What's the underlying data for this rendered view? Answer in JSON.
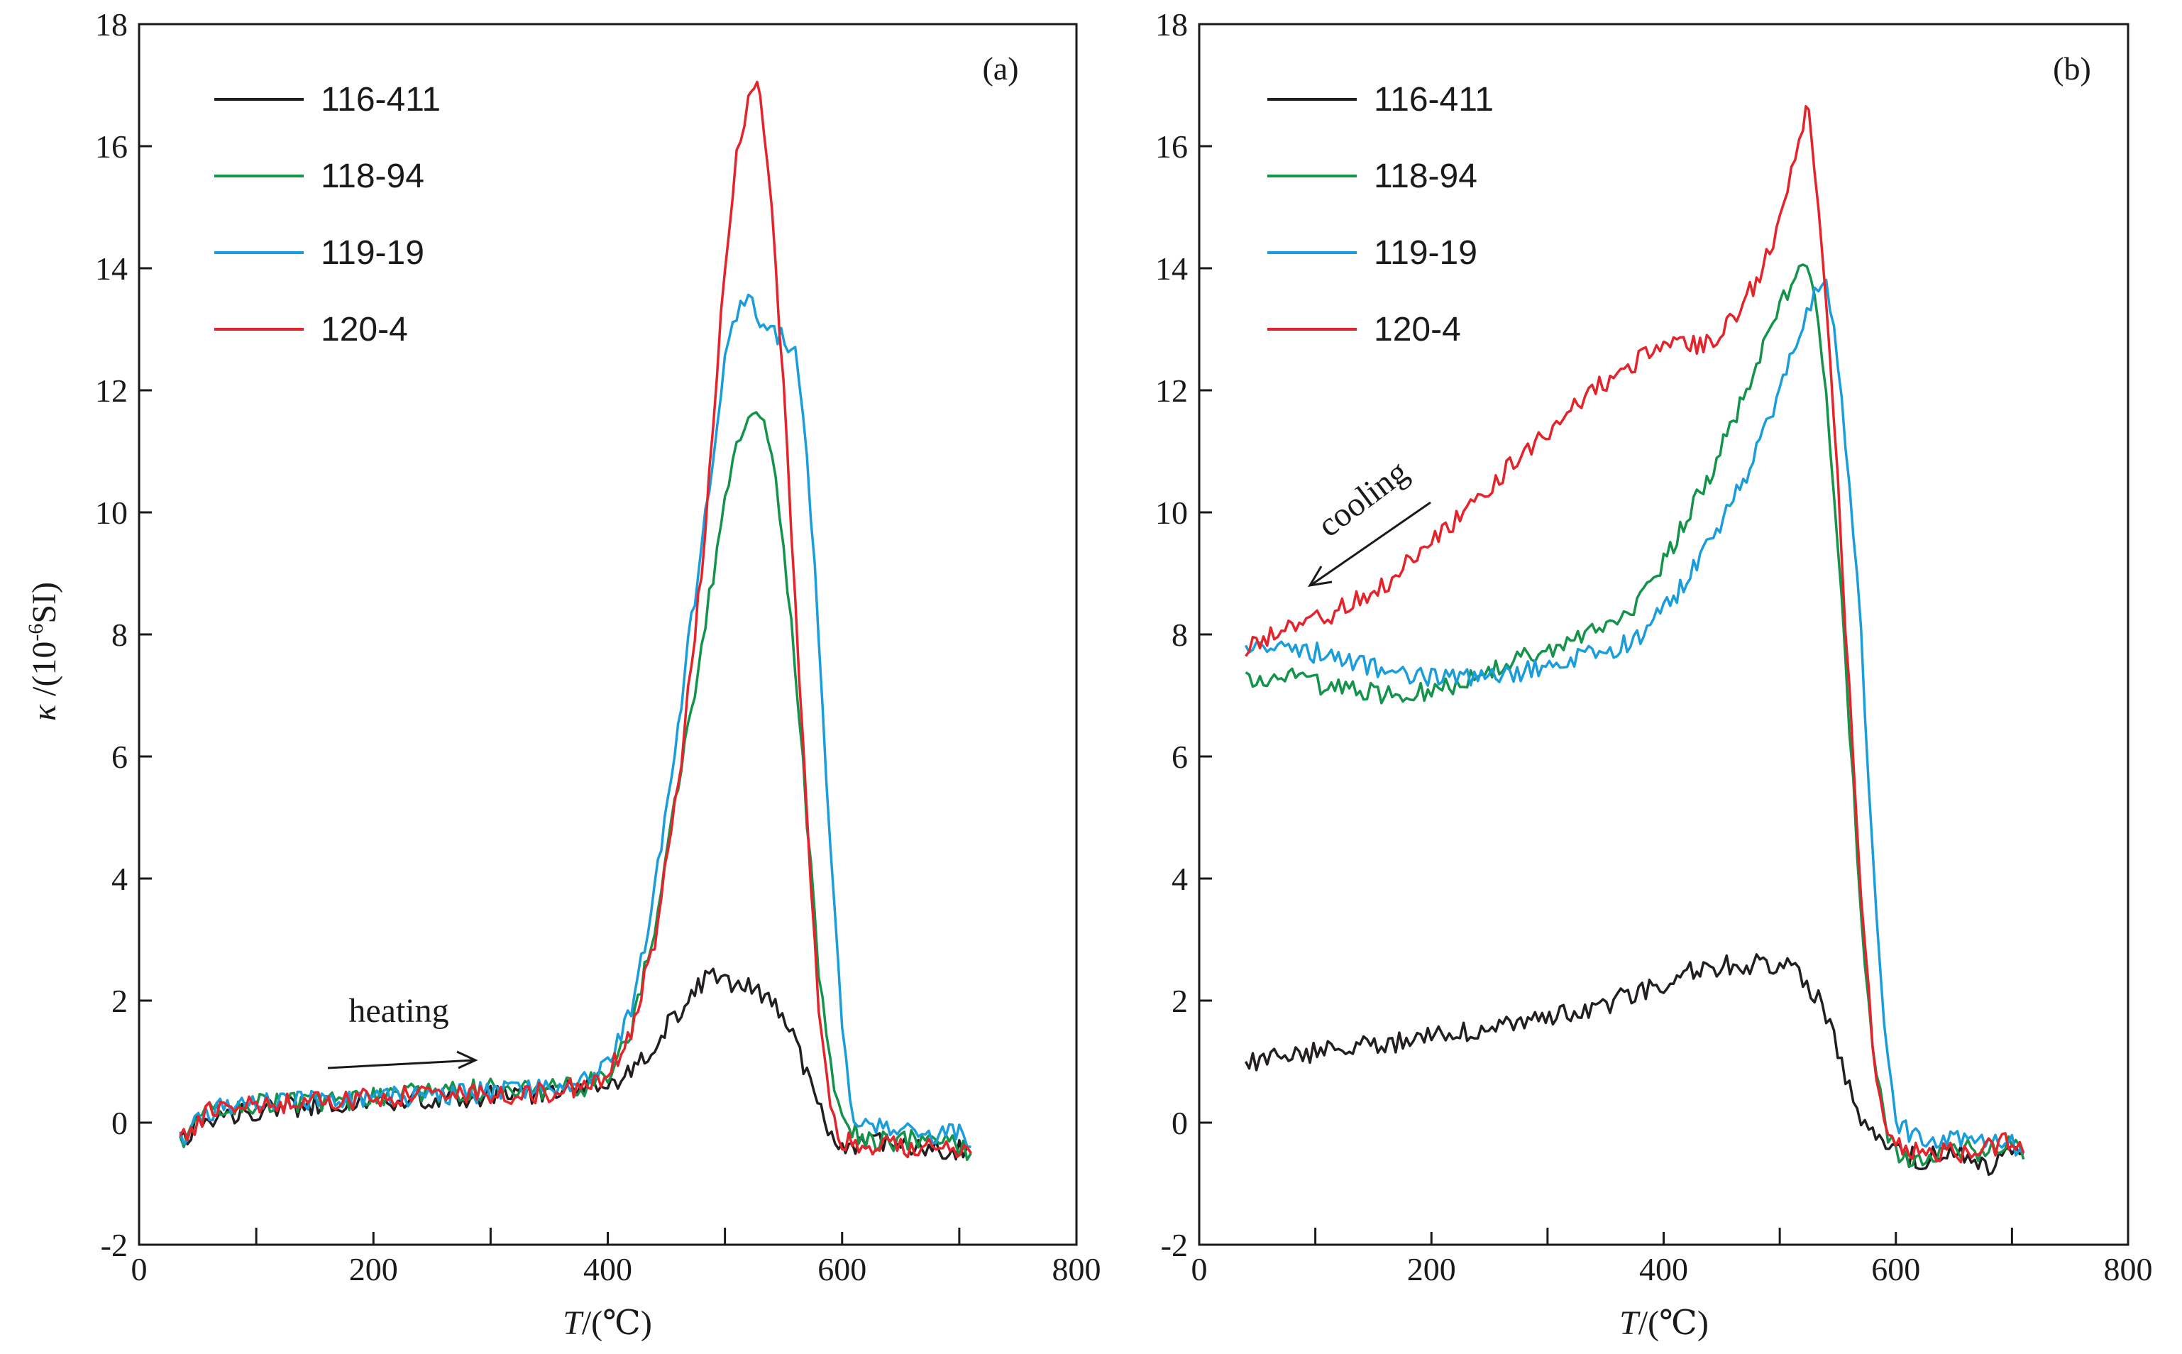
{
  "figure": {
    "ylabel_symbol": "κ",
    "ylabel_rest": " /(10",
    "ylabel_sup": "-6",
    "ylabel_unit": "SI)",
    "xlabel_symbol": "T",
    "xlabel_rest": "/(℃)"
  },
  "chart_data": [
    {
      "type": "line",
      "panel_label": "(a)",
      "annotation": "heating",
      "xlabel": "T/(℃)",
      "ylabel": "κ /(10-6SI)",
      "xlim": [
        0,
        800
      ],
      "ylim": [
        -2,
        18
      ],
      "x_ticks": [
        0,
        200,
        400,
        600,
        800
      ],
      "y_ticks": [
        -2,
        0,
        2,
        4,
        6,
        8,
        10,
        12,
        14,
        16,
        18
      ],
      "legend_position": "top-left",
      "grid": false,
      "series": [
        {
          "name": "116-411",
          "color": "#231f20",
          "points": [
            [
              35,
              -0.3
            ],
            [
              60,
              0.1
            ],
            [
              100,
              0.2
            ],
            [
              150,
              0.3
            ],
            [
              200,
              0.35
            ],
            [
              250,
              0.4
            ],
            [
              300,
              0.45
            ],
            [
              350,
              0.5
            ],
            [
              380,
              0.55
            ],
            [
              400,
              0.6
            ],
            [
              420,
              0.8
            ],
            [
              440,
              1.3
            ],
            [
              460,
              1.8
            ],
            [
              480,
              2.3
            ],
            [
              490,
              2.5
            ],
            [
              500,
              2.3
            ],
            [
              520,
              2.2
            ],
            [
              540,
              2.0
            ],
            [
              555,
              1.6
            ],
            [
              570,
              0.8
            ],
            [
              585,
              0.0
            ],
            [
              600,
              -0.4
            ],
            [
              620,
              -0.3
            ],
            [
              650,
              -0.4
            ],
            [
              680,
              -0.4
            ],
            [
              700,
              -0.45
            ],
            [
              710,
              -0.5
            ]
          ]
        },
        {
          "name": "118-94",
          "color": "#14934a",
          "points": [
            [
              35,
              -0.3
            ],
            [
              60,
              0.2
            ],
            [
              100,
              0.3
            ],
            [
              150,
              0.35
            ],
            [
              200,
              0.4
            ],
            [
              250,
              0.5
            ],
            [
              300,
              0.55
            ],
            [
              350,
              0.55
            ],
            [
              380,
              0.6
            ],
            [
              400,
              0.8
            ],
            [
              420,
              1.5
            ],
            [
              440,
              3.2
            ],
            [
              460,
              5.5
            ],
            [
              480,
              7.8
            ],
            [
              490,
              9.0
            ],
            [
              500,
              10.2
            ],
            [
              510,
              11.0
            ],
            [
              520,
              11.6
            ],
            [
              530,
              11.6
            ],
            [
              540,
              11.0
            ],
            [
              550,
              9.5
            ],
            [
              560,
              7.5
            ],
            [
              570,
              5.0
            ],
            [
              580,
              2.5
            ],
            [
              590,
              1.0
            ],
            [
              600,
              0.0
            ],
            [
              620,
              -0.3
            ],
            [
              650,
              -0.3
            ],
            [
              680,
              -0.3
            ],
            [
              700,
              -0.4
            ],
            [
              710,
              -0.5
            ]
          ]
        },
        {
          "name": "119-19",
          "color": "#1a9ddb",
          "points": [
            [
              35,
              -0.3
            ],
            [
              60,
              0.2
            ],
            [
              100,
              0.3
            ],
            [
              150,
              0.4
            ],
            [
              200,
              0.4
            ],
            [
              250,
              0.45
            ],
            [
              300,
              0.5
            ],
            [
              350,
              0.55
            ],
            [
              380,
              0.7
            ],
            [
              400,
              1.0
            ],
            [
              420,
              1.8
            ],
            [
              440,
              3.8
            ],
            [
              460,
              6.5
            ],
            [
              480,
              9.5
            ],
            [
              490,
              11.0
            ],
            [
              500,
              12.5
            ],
            [
              510,
              13.3
            ],
            [
              520,
              13.6
            ],
            [
              530,
              13.0
            ],
            [
              545,
              12.9
            ],
            [
              560,
              12.7
            ],
            [
              570,
              11.0
            ],
            [
              580,
              8.0
            ],
            [
              590,
              4.5
            ],
            [
              600,
              1.5
            ],
            [
              610,
              0.0
            ],
            [
              620,
              0.0
            ],
            [
              650,
              -0.1
            ],
            [
              680,
              -0.2
            ],
            [
              700,
              -0.2
            ],
            [
              710,
              -0.4
            ]
          ]
        },
        {
          "name": "120-4",
          "color": "#e5232b",
          "points": [
            [
              35,
              -0.3
            ],
            [
              60,
              0.2
            ],
            [
              100,
              0.3
            ],
            [
              150,
              0.35
            ],
            [
              200,
              0.4
            ],
            [
              250,
              0.45
            ],
            [
              300,
              0.45
            ],
            [
              350,
              0.5
            ],
            [
              380,
              0.6
            ],
            [
              400,
              0.8
            ],
            [
              420,
              1.5
            ],
            [
              440,
              3.0
            ],
            [
              460,
              5.5
            ],
            [
              480,
              9.0
            ],
            [
              490,
              11.5
            ],
            [
              500,
              14.0
            ],
            [
              510,
              15.8
            ],
            [
              520,
              16.8
            ],
            [
              525,
              17.1
            ],
            [
              530,
              16.8
            ],
            [
              540,
              15.0
            ],
            [
              550,
              12.0
            ],
            [
              560,
              8.5
            ],
            [
              570,
              5.0
            ],
            [
              580,
              2.0
            ],
            [
              590,
              0.2
            ],
            [
              600,
              -0.3
            ],
            [
              620,
              -0.4
            ],
            [
              650,
              -0.4
            ],
            [
              680,
              -0.4
            ],
            [
              710,
              -0.5
            ]
          ]
        }
      ]
    },
    {
      "type": "line",
      "panel_label": "(b)",
      "annotation": "cooling",
      "xlabel": "T/(℃)",
      "ylabel": "κ /(10-6SI)",
      "xlim": [
        0,
        800
      ],
      "ylim": [
        -2,
        18
      ],
      "x_ticks": [
        0,
        200,
        400,
        600,
        800
      ],
      "y_ticks": [
        -2,
        0,
        2,
        4,
        6,
        8,
        10,
        12,
        14,
        16,
        18
      ],
      "legend_position": "top-left",
      "grid": false,
      "series": [
        {
          "name": "116-411",
          "color": "#231f20",
          "points": [
            [
              40,
              1.0
            ],
            [
              80,
              1.1
            ],
            [
              120,
              1.2
            ],
            [
              160,
              1.3
            ],
            [
              200,
              1.4
            ],
            [
              240,
              1.5
            ],
            [
              280,
              1.6
            ],
            [
              320,
              1.8
            ],
            [
              360,
              2.0
            ],
            [
              400,
              2.3
            ],
            [
              420,
              2.5
            ],
            [
              440,
              2.5
            ],
            [
              460,
              2.6
            ],
            [
              480,
              2.6
            ],
            [
              500,
              2.6
            ],
            [
              510,
              2.7
            ],
            [
              520,
              2.4
            ],
            [
              530,
              2.1
            ],
            [
              540,
              1.8
            ],
            [
              550,
              1.2
            ],
            [
              560,
              0.6
            ],
            [
              570,
              0.1
            ],
            [
              580,
              -0.2
            ],
            [
              600,
              -0.5
            ],
            [
              620,
              -0.6
            ],
            [
              650,
              -0.5
            ],
            [
              680,
              -0.7
            ],
            [
              700,
              -0.4
            ],
            [
              710,
              -0.5
            ]
          ]
        },
        {
          "name": "118-94",
          "color": "#14934a",
          "points": [
            [
              40,
              7.3
            ],
            [
              80,
              7.3
            ],
            [
              120,
              7.1
            ],
            [
              160,
              7.0
            ],
            [
              200,
              7.1
            ],
            [
              240,
              7.3
            ],
            [
              280,
              7.6
            ],
            [
              320,
              7.9
            ],
            [
              360,
              8.2
            ],
            [
              380,
              8.6
            ],
            [
              400,
              9.2
            ],
            [
              420,
              9.9
            ],
            [
              440,
              10.6
            ],
            [
              460,
              11.5
            ],
            [
              480,
              12.4
            ],
            [
              500,
              13.3
            ],
            [
              510,
              13.8
            ],
            [
              520,
              14.2
            ],
            [
              530,
              13.6
            ],
            [
              540,
              12.0
            ],
            [
              550,
              9.5
            ],
            [
              560,
              6.5
            ],
            [
              570,
              3.5
            ],
            [
              580,
              1.2
            ],
            [
              590,
              0.0
            ],
            [
              600,
              -0.5
            ],
            [
              620,
              -0.6
            ],
            [
              650,
              -0.4
            ],
            [
              680,
              -0.5
            ],
            [
              700,
              -0.3
            ],
            [
              710,
              -0.6
            ]
          ]
        },
        {
          "name": "119-19",
          "color": "#1a9ddb",
          "points": [
            [
              40,
              7.8
            ],
            [
              80,
              7.8
            ],
            [
              120,
              7.6
            ],
            [
              160,
              7.4
            ],
            [
              200,
              7.3
            ],
            [
              240,
              7.3
            ],
            [
              280,
              7.4
            ],
            [
              320,
              7.6
            ],
            [
              360,
              7.8
            ],
            [
              380,
              8.0
            ],
            [
              400,
              8.4
            ],
            [
              420,
              8.9
            ],
            [
              440,
              9.5
            ],
            [
              460,
              10.2
            ],
            [
              480,
              11.0
            ],
            [
              500,
              12.0
            ],
            [
              520,
              13.0
            ],
            [
              530,
              13.6
            ],
            [
              540,
              13.7
            ],
            [
              550,
              12.5
            ],
            [
              560,
              10.5
            ],
            [
              570,
              8.0
            ],
            [
              580,
              4.5
            ],
            [
              590,
              1.5
            ],
            [
              600,
              0.0
            ],
            [
              620,
              -0.3
            ],
            [
              650,
              -0.2
            ],
            [
              680,
              -0.4
            ],
            [
              700,
              -0.3
            ],
            [
              710,
              -0.5
            ]
          ]
        },
        {
          "name": "120-4",
          "color": "#e5232b",
          "points": [
            [
              40,
              7.8
            ],
            [
              80,
              8.1
            ],
            [
              120,
              8.4
            ],
            [
              160,
              8.8
            ],
            [
              200,
              9.5
            ],
            [
              240,
              10.2
            ],
            [
              280,
              11.0
            ],
            [
              320,
              11.7
            ],
            [
              360,
              12.3
            ],
            [
              400,
              12.7
            ],
            [
              420,
              12.7
            ],
            [
              440,
              12.8
            ],
            [
              460,
              13.2
            ],
            [
              480,
              13.8
            ],
            [
              500,
              14.7
            ],
            [
              510,
              15.5
            ],
            [
              520,
              16.4
            ],
            [
              525,
              16.6
            ],
            [
              530,
              15.5
            ],
            [
              540,
              13.5
            ],
            [
              550,
              10.5
            ],
            [
              560,
              7.0
            ],
            [
              570,
              3.8
            ],
            [
              580,
              1.2
            ],
            [
              590,
              0.0
            ],
            [
              600,
              -0.4
            ],
            [
              620,
              -0.5
            ],
            [
              650,
              -0.5
            ],
            [
              680,
              -0.4
            ],
            [
              700,
              -0.3
            ],
            [
              710,
              -0.5
            ]
          ]
        }
      ]
    }
  ]
}
